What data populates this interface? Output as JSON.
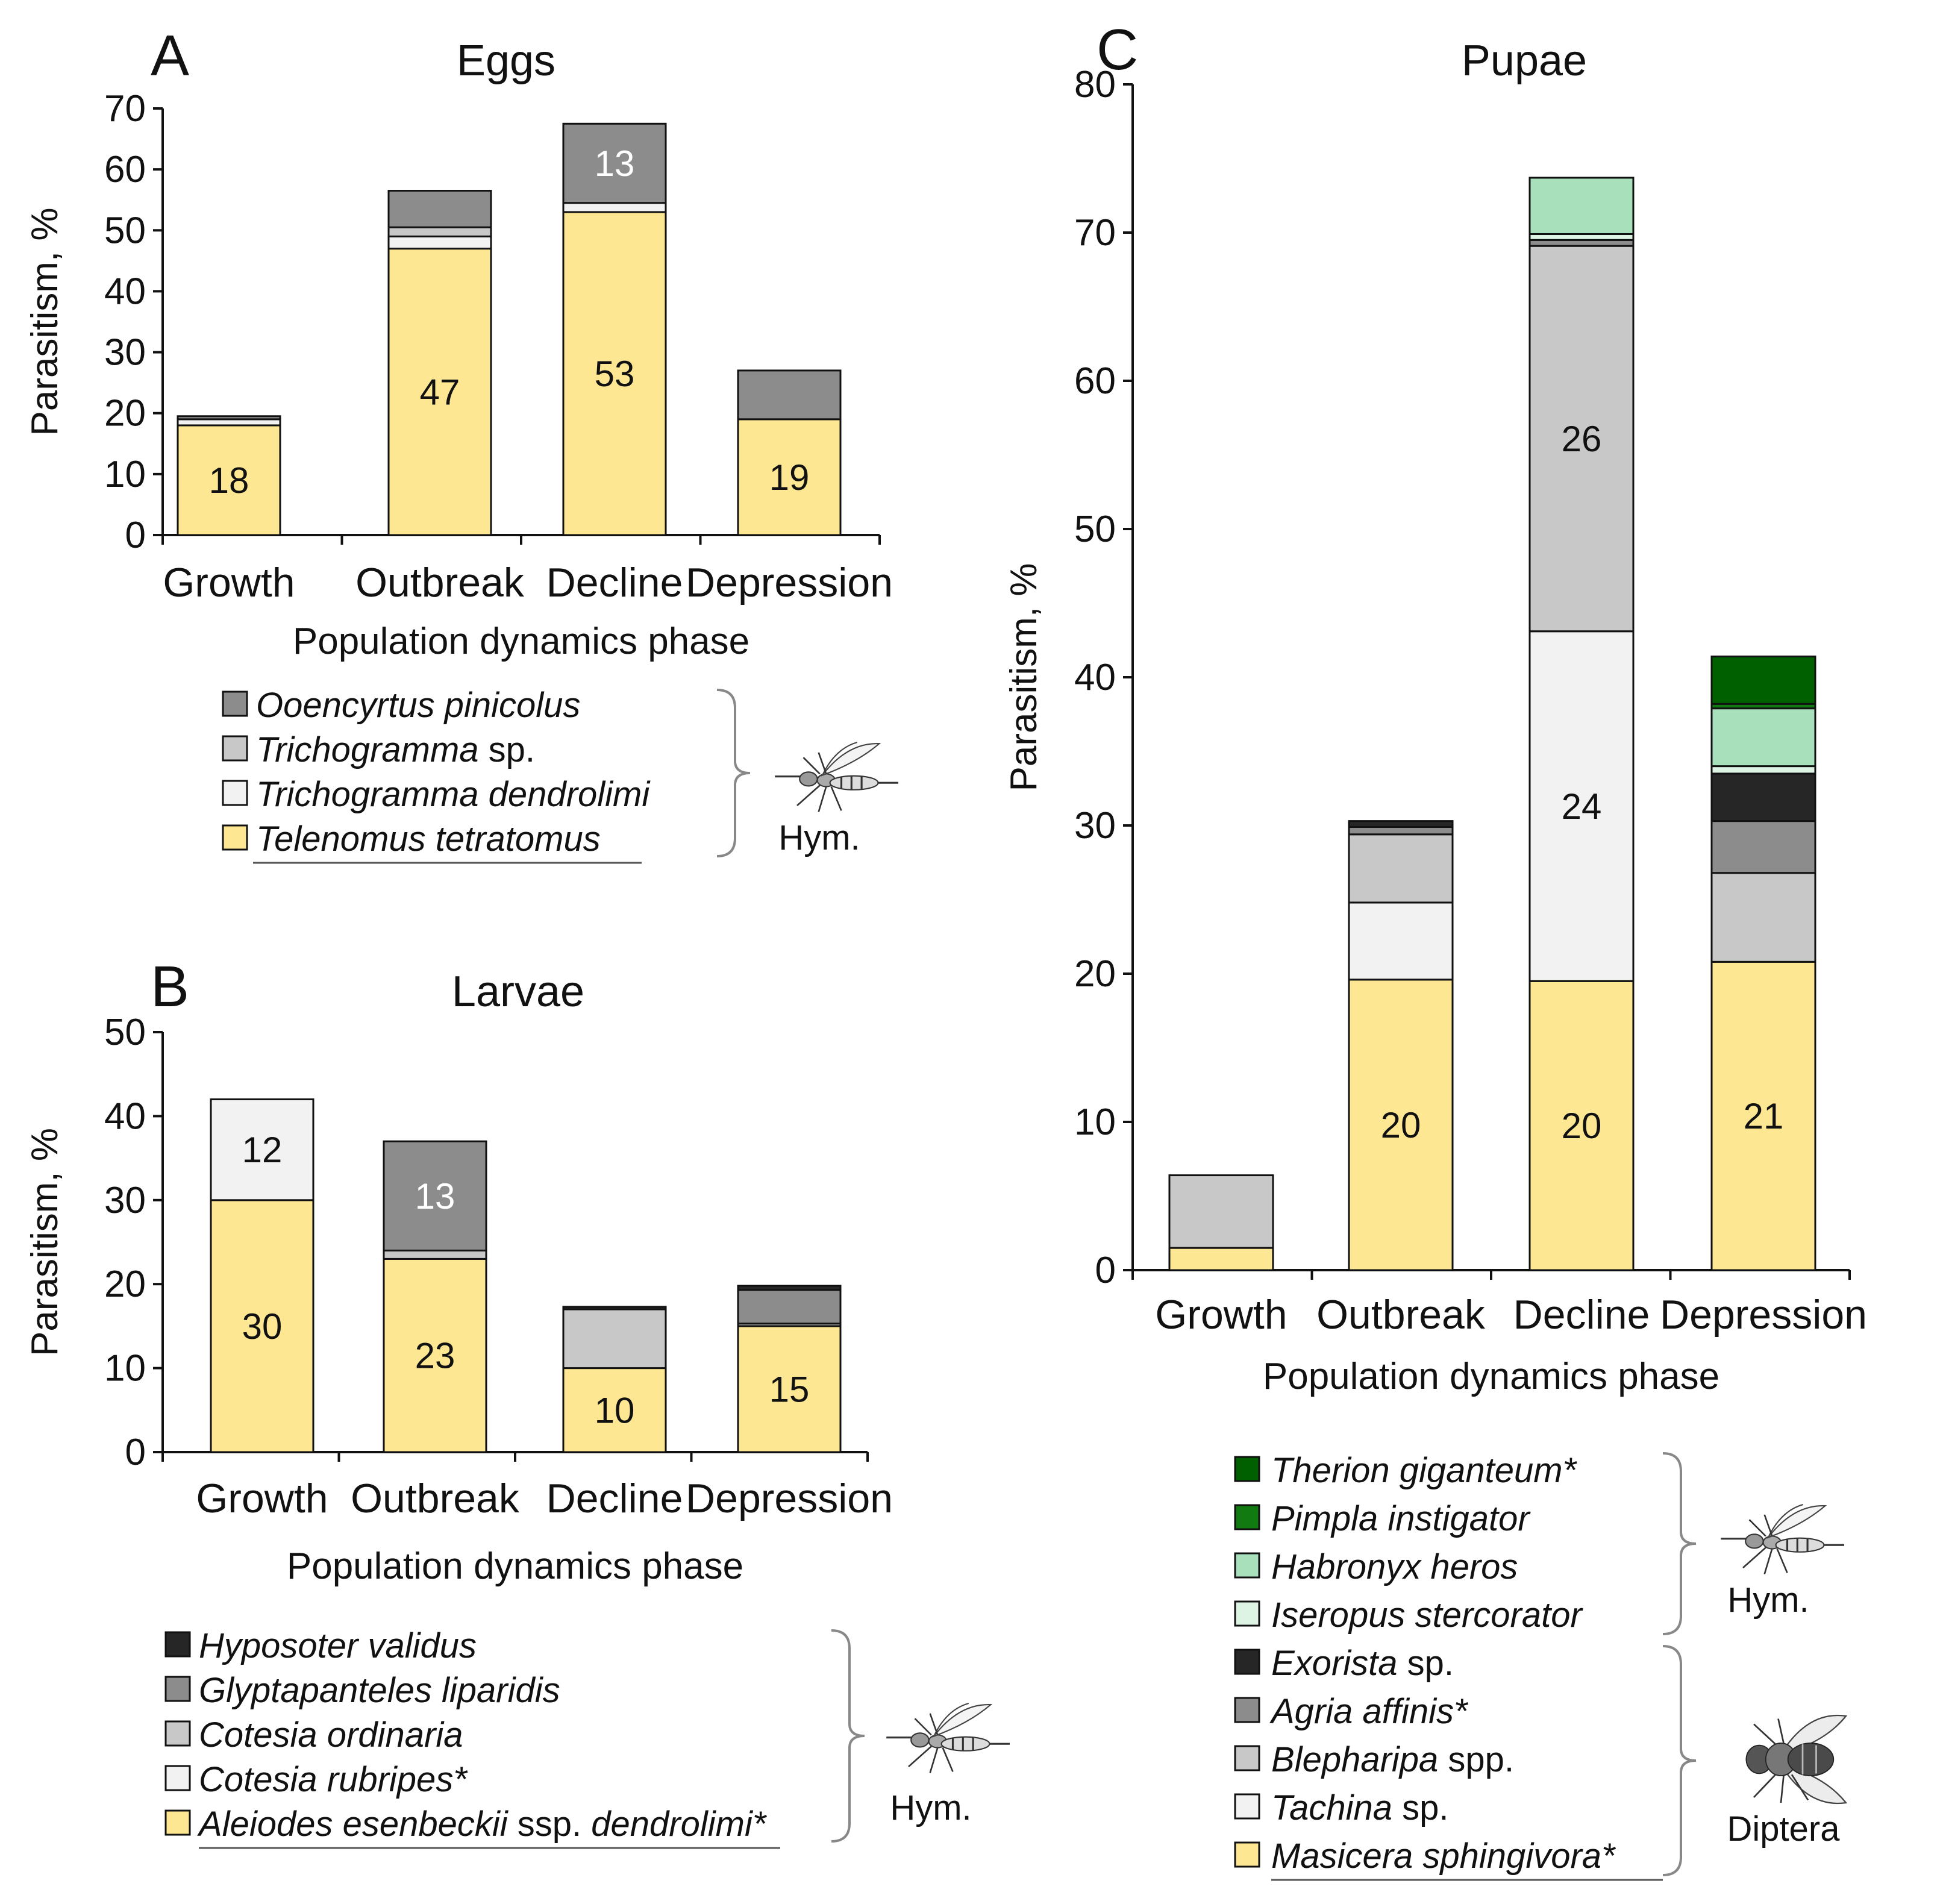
{
  "colors": {
    "yellow": "#fde793",
    "verylight": "#f2f2f2",
    "light": "#c8c8c8",
    "mid": "#8c8c8c",
    "dark": "#262626",
    "paleGreen": "#ddf3e3",
    "lightGreen": "#a8e0bc",
    "green": "#117a11",
    "darkGreen": "#006000"
  },
  "icons": {
    "wasp": "wasp-icon",
    "fly": "fly-icon"
  },
  "chart_data": [
    {
      "id": "A",
      "type": "bar",
      "stacked": true,
      "title": "Eggs",
      "xlabel": "Population dynamics phase",
      "ylabel": "Parasitism, %",
      "ylim": [
        0,
        70
      ],
      "yticks": [
        0,
        10,
        20,
        30,
        40,
        50,
        60,
        70
      ],
      "categories": [
        "Growth",
        "Outbreak",
        "Decline",
        "Depression"
      ],
      "series": [
        {
          "name": "Telenomus tetratomus",
          "color": "#fde793",
          "values": [
            18,
            47,
            53,
            19
          ]
        },
        {
          "name": "Trichogramma dendrolimi",
          "color": "#f2f2f2",
          "values": [
            1,
            2,
            1.5,
            0
          ]
        },
        {
          "name": "Trichogramma sp.",
          "color": "#c8c8c8",
          "values": [
            0,
            1.5,
            0,
            0
          ]
        },
        {
          "name": "Ooencyrtus pinicolus",
          "color": "#8c8c8c",
          "values": [
            0.5,
            6,
            13,
            8
          ]
        }
      ],
      "data_labels": [
        {
          "category": "Growth",
          "series": "Telenomus tetratomus",
          "text": "18"
        },
        {
          "category": "Outbreak",
          "series": "Telenomus tetratomus",
          "text": "47"
        },
        {
          "category": "Decline",
          "series": "Telenomus tetratomus",
          "text": "53"
        },
        {
          "category": "Decline",
          "series": "Ooencyrtus pinicolus",
          "text": "13"
        },
        {
          "category": "Depression",
          "series": "Telenomus tetratomus",
          "text": "19"
        }
      ],
      "legend": {
        "entries": [
          {
            "name": "Ooencyrtus pinicolus",
            "plain": "",
            "color": "#8c8c8c"
          },
          {
            "name": "Trichogramma",
            "plain": " sp.",
            "color": "#c8c8c8"
          },
          {
            "name": "Trichogramma dendrolimi",
            "plain": "",
            "color": "#f2f2f2"
          },
          {
            "name": "Telenomus tetratomus",
            "plain": "",
            "color": "#fde793",
            "underline": true
          }
        ],
        "groups": [
          {
            "label": "Hym.",
            "icon": "wasp-icon",
            "from": 0,
            "to": 3
          }
        ]
      }
    },
    {
      "id": "B",
      "type": "bar",
      "stacked": true,
      "title": "Larvae",
      "xlabel": "Population dynamics phase",
      "ylabel": "Parasitism, %",
      "ylim": [
        0,
        50
      ],
      "yticks": [
        0,
        10,
        20,
        30,
        40,
        50
      ],
      "categories": [
        "Growth",
        "Outbreak",
        "Decline",
        "Depression"
      ],
      "series": [
        {
          "name": "Aleiodes esenbeckii ssp. dendrolimi*",
          "color": "#fde793",
          "values": [
            30,
            23,
            10,
            15
          ]
        },
        {
          "name": "Cotesia rubripes*",
          "color": "#f2f2f2",
          "values": [
            12,
            0,
            0,
            0
          ]
        },
        {
          "name": "Cotesia ordinaria",
          "color": "#c8c8c8",
          "values": [
            0,
            1,
            7,
            0.3
          ]
        },
        {
          "name": "Glyptapanteles liparidis",
          "color": "#8c8c8c",
          "values": [
            0,
            13,
            0,
            4
          ]
        },
        {
          "name": "Hyposoter validus",
          "color": "#262626",
          "values": [
            0,
            0,
            0.3,
            0.5
          ]
        }
      ],
      "data_labels": [
        {
          "category": "Growth",
          "series": "Aleiodes esenbeckii ssp. dendrolimi*",
          "text": "30"
        },
        {
          "category": "Growth",
          "series": "Cotesia rubripes*",
          "text": "12"
        },
        {
          "category": "Outbreak",
          "series": "Aleiodes esenbeckii ssp. dendrolimi*",
          "text": "23"
        },
        {
          "category": "Outbreak",
          "series": "Glyptapanteles liparidis",
          "text": "13"
        },
        {
          "category": "Decline",
          "series": "Aleiodes esenbeckii ssp. dendrolimi*",
          "text": "10"
        },
        {
          "category": "Depression",
          "series": "Aleiodes esenbeckii ssp. dendrolimi*",
          "text": "15"
        }
      ],
      "legend": {
        "entries": [
          {
            "name": "Hyposoter validus",
            "plain": "",
            "color": "#262626"
          },
          {
            "name": "Glyptapanteles liparidis",
            "plain": "",
            "color": "#8c8c8c"
          },
          {
            "name": "Cotesia ordinaria",
            "plain": "",
            "color": "#c8c8c8"
          },
          {
            "name": "Cotesia rubripes*",
            "plain": "",
            "color": "#f2f2f2"
          },
          {
            "name": "Aleiodes esenbeckii",
            "plain": " ssp. ",
            "name2": "dendrolimi*",
            "color": "#fde793",
            "underline": true
          }
        ],
        "groups": [
          {
            "label": "Hym.",
            "icon": "wasp-icon",
            "from": 0,
            "to": 4
          }
        ]
      }
    },
    {
      "id": "C",
      "type": "bar",
      "stacked": true,
      "title": "Pupae",
      "xlabel": "Population dynamics phase",
      "ylabel": "Parasitism, %",
      "ylim": [
        0,
        80
      ],
      "yticks": [
        0,
        10,
        20,
        30,
        40,
        50,
        60,
        70,
        80
      ],
      "categories": [
        "Growth",
        "Outbreak",
        "Decline",
        "Depression"
      ],
      "series": [
        {
          "name": "Masicera sphingivora*",
          "color": "#fde793",
          "values": [
            1.5,
            19.6,
            19.5,
            20.8
          ]
        },
        {
          "name": "Tachina sp.",
          "color": "#f2f2f2",
          "values": [
            0,
            5.2,
            23.6,
            0
          ]
        },
        {
          "name": "Blepharipa spp.",
          "color": "#c8c8c8",
          "values": [
            4.9,
            4.6,
            26,
            6
          ]
        },
        {
          "name": "Agria affinis*",
          "color": "#8c8c8c",
          "values": [
            0,
            0.5,
            0.4,
            3.5
          ]
        },
        {
          "name": "Exorista sp.",
          "color": "#262626",
          "values": [
            0,
            0.4,
            0,
            3.2
          ]
        },
        {
          "name": "Iseropus stercorator",
          "color": "#ddf3e3",
          "values": [
            0,
            0,
            0.4,
            0.5
          ]
        },
        {
          "name": "Habronyx heros",
          "color": "#a8e0bc",
          "values": [
            0,
            0,
            3.8,
            3.9
          ]
        },
        {
          "name": "Pimpla instigator",
          "color": "#117a11",
          "values": [
            0,
            0,
            0,
            0.3
          ]
        },
        {
          "name": "Therion giganteum*",
          "color": "#006000",
          "values": [
            0,
            0,
            0,
            3.2
          ]
        }
      ],
      "data_labels": [
        {
          "category": "Outbreak",
          "series": "Masicera sphingivora*",
          "text": "20"
        },
        {
          "category": "Decline",
          "series": "Masicera sphingivora*",
          "text": "20"
        },
        {
          "category": "Decline",
          "series": "Tachina sp.",
          "text": "24"
        },
        {
          "category": "Decline",
          "series": "Blepharipa spp.",
          "text": "26"
        },
        {
          "category": "Depression",
          "series": "Masicera sphingivora*",
          "text": "21"
        }
      ],
      "legend": {
        "entries": [
          {
            "name": "Therion giganteum*",
            "plain": "",
            "color": "#006000"
          },
          {
            "name": "Pimpla instigator",
            "plain": "",
            "color": "#117a11"
          },
          {
            "name": "Habronyx heros",
            "plain": "",
            "color": "#a8e0bc"
          },
          {
            "name": "Iseropus stercorator",
            "plain": "",
            "color": "#ddf3e3"
          },
          {
            "name": "Exorista",
            "plain": " sp.",
            "color": "#262626"
          },
          {
            "name": "Agria affinis*",
            "plain": "",
            "color": "#8c8c8c"
          },
          {
            "name": "Blepharipa",
            "plain": " spp.",
            "color": "#c8c8c8"
          },
          {
            "name": "Tachina",
            "plain": " sp.",
            "color": "#f2f2f2"
          },
          {
            "name": "Masicera sphingivora*",
            "plain": "",
            "color": "#fde793",
            "underline": true
          }
        ],
        "groups": [
          {
            "label": "Hym.",
            "icon": "wasp-icon",
            "from": 0,
            "to": 3
          },
          {
            "label": "Diptera",
            "icon": "fly-icon",
            "from": 4,
            "to": 8
          }
        ]
      }
    }
  ]
}
